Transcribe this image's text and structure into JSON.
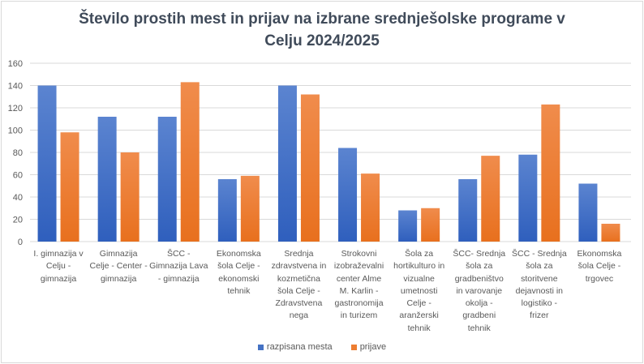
{
  "chart_data": {
    "type": "bar",
    "title_line1": "Število prostih mest in prijav na izbrane srednješolske programe v",
    "title_line2": "Celju 2024/2025",
    "xlabel": "",
    "ylabel": "",
    "ylim": [
      0,
      160
    ],
    "yticks": [
      0,
      20,
      40,
      60,
      80,
      100,
      120,
      140,
      160
    ],
    "grid": true,
    "legend_position": "bottom",
    "categories": [
      [
        "I. gimnazija v",
        "Celju -",
        "gimnazija"
      ],
      [
        "Gimnazija",
        "Celje - Center -",
        "gimnazija"
      ],
      [
        "ŠCC -",
        "Gimnazija Lava",
        "- gimnazija"
      ],
      [
        "Ekonomska",
        "šola Celje -",
        "ekonomski",
        "tehnik"
      ],
      [
        "Srednja",
        "zdravstvena in",
        "kozmetična",
        "šola Celje -",
        "Zdravstvena",
        "nega"
      ],
      [
        "Strokovni",
        "izobraževalni",
        "center Alme",
        "M. Karlin -",
        "gastronomija",
        "in turizem"
      ],
      [
        "Šola za",
        "hortikulturo in",
        "vizualne",
        "umetnosti",
        "Celje -",
        "aranžerski",
        "tehnik"
      ],
      [
        "ŠCC- Srednja",
        "šola za",
        "gradbeništvo",
        "in varovanje",
        "okolja -",
        "gradbeni",
        "tehnik"
      ],
      [
        "ŠCC - Srednja",
        "šola za",
        "storitvene",
        "dejavnosti in",
        "logistiko -",
        "frizer"
      ],
      [
        "Ekonomska",
        "šola Celje -",
        "trgovec"
      ]
    ],
    "series": [
      {
        "name": "razpisana mesta",
        "color": "#4472c4",
        "values": [
          140,
          112,
          112,
          56,
          140,
          84,
          28,
          56,
          78,
          52
        ]
      },
      {
        "name": "prijave",
        "color": "#ed7d31",
        "values": [
          98,
          80,
          143,
          59,
          132,
          61,
          30,
          77,
          123,
          16
        ]
      }
    ]
  }
}
